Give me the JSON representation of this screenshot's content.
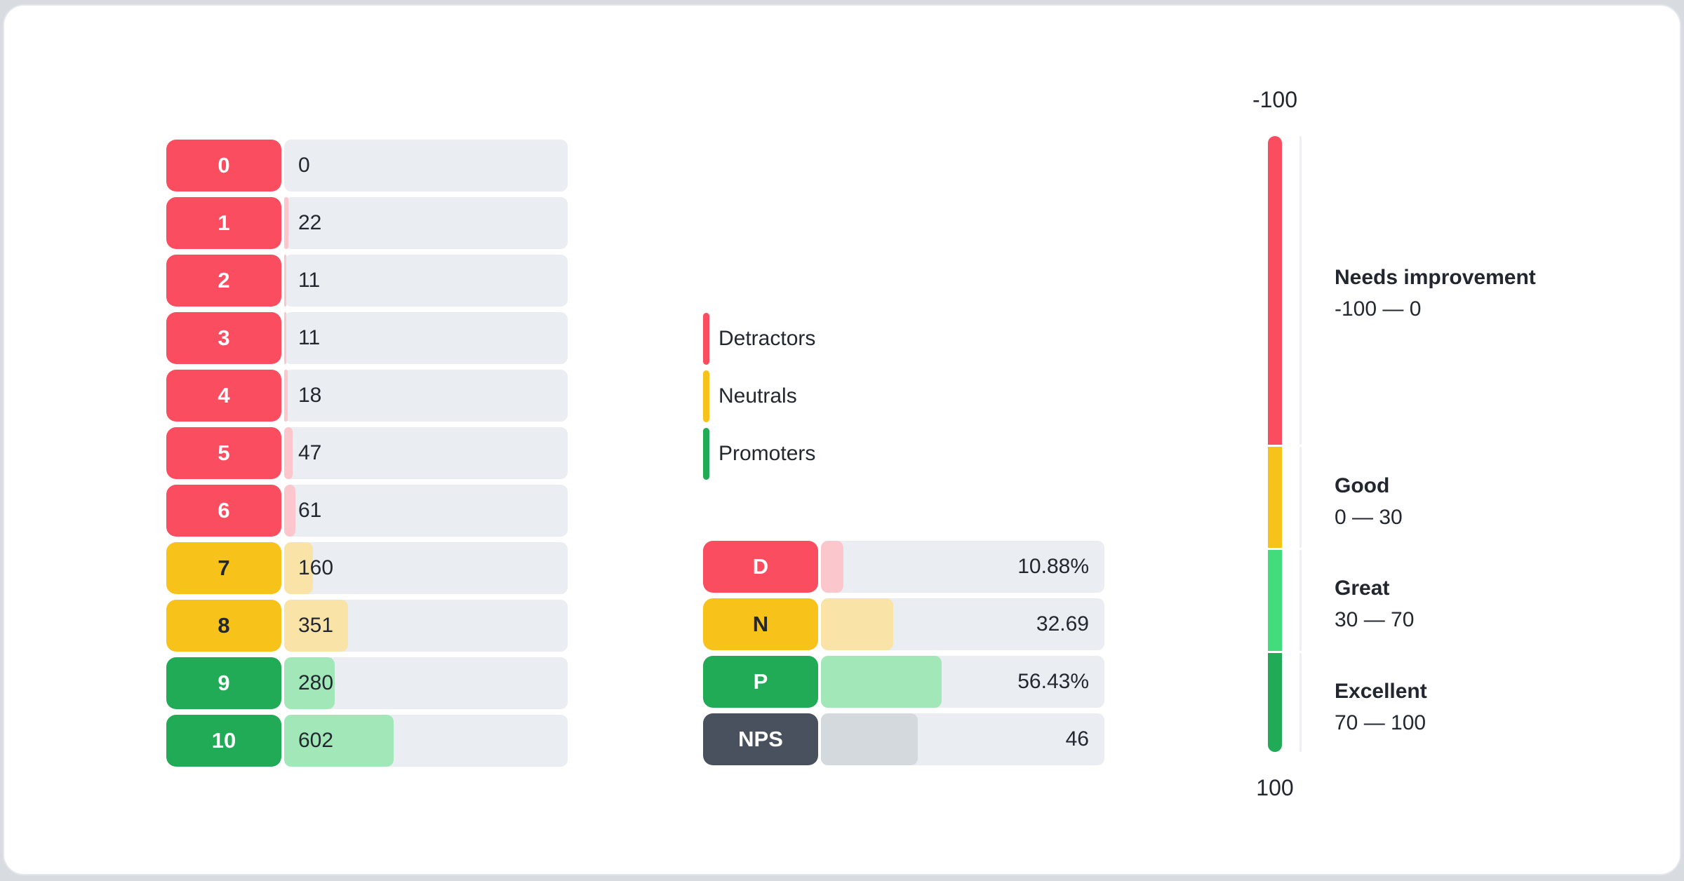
{
  "palette": {
    "detractor": "#FA4D60",
    "detractor_light": "#FBC6CC",
    "neutral": "#F7C31A",
    "neutral_light": "#FAE3A6",
    "promoter": "#21AB56",
    "promoter_bright": "#43DC7C",
    "nps_badge": "#49515F",
    "nps_light": "#D4D9DD",
    "track": "#EAEDF1",
    "text_dark": "#22262E",
    "page_background": "#D8DCE1",
    "card_background": "#FFFFFF",
    "card_border": "#E3E6EA",
    "gauge_divider": "#EDEFF2"
  },
  "chart_data": {
    "type": "bar",
    "distribution": {
      "rows": [
        {
          "score": "0",
          "count": "0",
          "group": "detractor",
          "fill_width": "0%"
        },
        {
          "score": "1",
          "count": "22",
          "group": "detractor",
          "fill_width": "1.4%"
        },
        {
          "score": "2",
          "count": "11",
          "group": "detractor",
          "fill_width": "0.7%"
        },
        {
          "score": "3",
          "count": "11",
          "group": "detractor",
          "fill_width": "0.7%"
        },
        {
          "score": "4",
          "count": "18",
          "group": "detractor",
          "fill_width": "1.2%"
        },
        {
          "score": "5",
          "count": "47",
          "group": "detractor",
          "fill_width": "3%"
        },
        {
          "score": "6",
          "count": "61",
          "group": "detractor",
          "fill_width": "3.9%"
        },
        {
          "score": "7",
          "count": "160",
          "group": "neutral",
          "fill_width": "10.2%"
        },
        {
          "score": "8",
          "count": "351",
          "group": "neutral",
          "fill_width": "22.5%"
        },
        {
          "score": "9",
          "count": "280",
          "group": "promoter",
          "fill_width": "17.9%"
        },
        {
          "score": "10",
          "count": "602",
          "group": "promoter",
          "fill_width": "38.5%"
        }
      ]
    },
    "legend": {
      "items": [
        {
          "label": "Detractors",
          "color": "#FA4D60"
        },
        {
          "label": "Neutrals",
          "color": "#F7C31A"
        },
        {
          "label": "Promoters",
          "color": "#21AB56"
        }
      ]
    },
    "summary": {
      "rows": [
        {
          "label": "D",
          "value": "10.88%",
          "group": "detractor",
          "fill_width": "8%"
        },
        {
          "label": "N",
          "value": "32.69",
          "group": "neutral",
          "fill_width": "25.6%"
        },
        {
          "label": "P",
          "value": "56.43%",
          "group": "promoter",
          "fill_width": "42.6%"
        },
        {
          "label": "NPS",
          "value": "46",
          "group": "nps",
          "fill_width": "34.2%"
        }
      ]
    },
    "gauge": {
      "top_label": "-100",
      "bottom_label": "100",
      "segments": [
        {
          "label": "Needs improvement",
          "range": "-100 — 0",
          "color": "#FA4D60"
        },
        {
          "label": "Good",
          "range": "0 — 30",
          "color": "#F7C31A"
        },
        {
          "label": "Great",
          "range": "30 — 70",
          "color": "#43DC7C"
        },
        {
          "label": "Excellent",
          "range": "70 — 100",
          "color": "#21AB56"
        }
      ]
    }
  }
}
